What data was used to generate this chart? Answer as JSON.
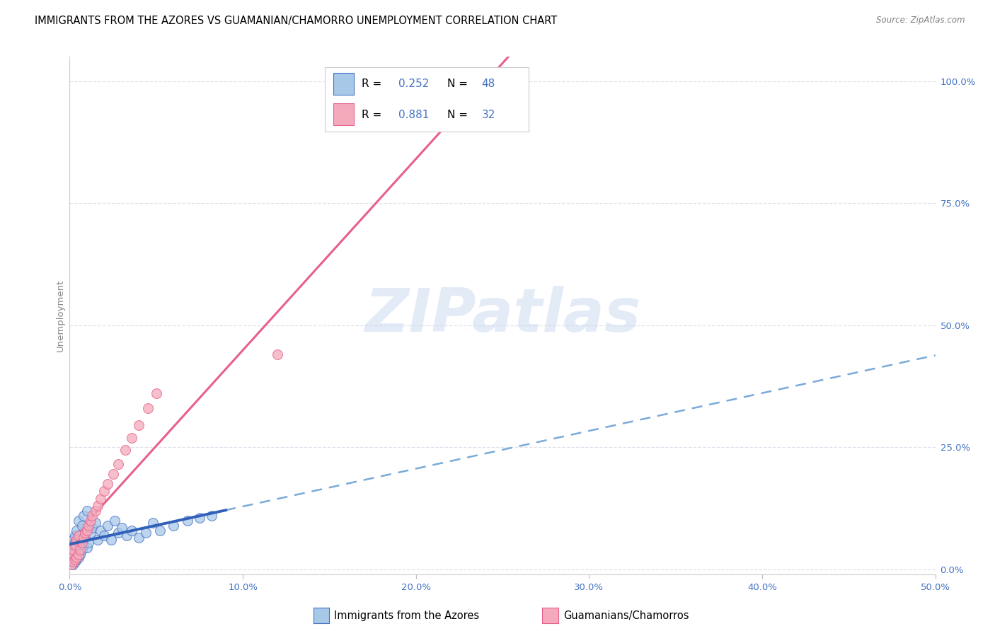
{
  "title": "IMMIGRANTS FROM THE AZORES VS GUAMANIAN/CHAMORRO UNEMPLOYMENT CORRELATION CHART",
  "source": "Source: ZipAtlas.com",
  "ylabel": "Unemployment",
  "xlim": [
    0.0,
    0.5
  ],
  "ylim": [
    -0.01,
    1.05
  ],
  "xtick_vals": [
    0.0,
    0.1,
    0.2,
    0.3,
    0.4,
    0.5
  ],
  "xtick_labels": [
    "0.0%",
    "10.0%",
    "20.0%",
    "30.0%",
    "40.0%",
    "50.0%"
  ],
  "ytick_vals": [
    0.0,
    0.25,
    0.5,
    0.75,
    1.0
  ],
  "ytick_labels": [
    "0.0%",
    "25.0%",
    "50.0%",
    "75.0%",
    "100.0%"
  ],
  "legend_r1": "R = 0.252",
  "legend_n1": "N = 48",
  "legend_r2": "R = 0.881",
  "legend_n2": "N = 32",
  "color_blue_fill": "#A8C8E8",
  "color_pink_fill": "#F4AABB",
  "color_blue_edge": "#4472C4",
  "color_pink_edge": "#E8608A",
  "color_line_blue_solid": "#3060B8",
  "color_line_blue_dash": "#7AAAD8",
  "color_line_pink": "#E8608A",
  "watermark": "ZIPatlas",
  "bg": "#FFFFFF",
  "grid_color": "#E0E0EE",
  "azores_x": [
    0.001,
    0.001,
    0.001,
    0.002,
    0.002,
    0.002,
    0.002,
    0.003,
    0.003,
    0.003,
    0.003,
    0.004,
    0.004,
    0.004,
    0.005,
    0.005,
    0.005,
    0.006,
    0.006,
    0.007,
    0.007,
    0.008,
    0.008,
    0.009,
    0.01,
    0.01,
    0.011,
    0.012,
    0.013,
    0.015,
    0.016,
    0.018,
    0.02,
    0.022,
    0.024,
    0.026,
    0.028,
    0.03,
    0.033,
    0.036,
    0.04,
    0.044,
    0.048,
    0.052,
    0.06,
    0.068,
    0.075,
    0.082
  ],
  "azores_y": [
    0.02,
    0.03,
    0.045,
    0.01,
    0.025,
    0.035,
    0.06,
    0.015,
    0.04,
    0.055,
    0.07,
    0.02,
    0.05,
    0.08,
    0.025,
    0.06,
    0.1,
    0.03,
    0.07,
    0.04,
    0.09,
    0.05,
    0.11,
    0.065,
    0.045,
    0.12,
    0.055,
    0.075,
    0.085,
    0.095,
    0.06,
    0.08,
    0.07,
    0.09,
    0.06,
    0.1,
    0.075,
    0.085,
    0.07,
    0.08,
    0.065,
    0.075,
    0.095,
    0.08,
    0.09,
    0.1,
    0.105,
    0.11
  ],
  "guam_x": [
    0.001,
    0.001,
    0.002,
    0.002,
    0.003,
    0.003,
    0.004,
    0.004,
    0.005,
    0.005,
    0.006,
    0.007,
    0.008,
    0.009,
    0.01,
    0.011,
    0.012,
    0.013,
    0.015,
    0.016,
    0.018,
    0.02,
    0.022,
    0.025,
    0.028,
    0.032,
    0.036,
    0.04,
    0.045,
    0.05,
    0.25,
    0.12
  ],
  "guam_y": [
    0.01,
    0.03,
    0.015,
    0.04,
    0.02,
    0.05,
    0.025,
    0.06,
    0.03,
    0.07,
    0.04,
    0.055,
    0.065,
    0.075,
    0.08,
    0.09,
    0.1,
    0.11,
    0.12,
    0.13,
    0.145,
    0.16,
    0.175,
    0.195,
    0.215,
    0.245,
    0.27,
    0.295,
    0.33,
    0.36,
    1.0,
    0.44
  ],
  "marker_size": 100,
  "title_fontsize": 10.5,
  "axis_fontsize": 9.5
}
